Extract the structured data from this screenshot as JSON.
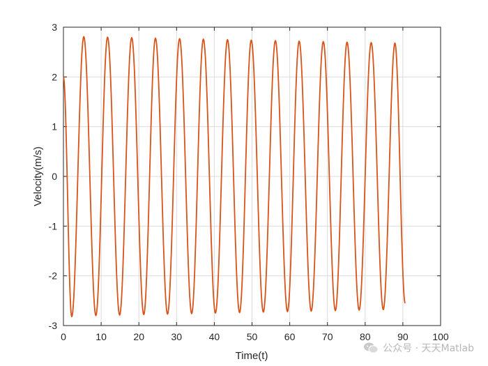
{
  "chart_data": {
    "type": "line",
    "title": "",
    "xlabel": "Time(t)",
    "ylabel": "Velocity(m/s)",
    "xlim": [
      0,
      100
    ],
    "ylim": [
      -3,
      3
    ],
    "xticks": [
      "0",
      "10",
      "20",
      "30",
      "40",
      "50",
      "60",
      "70",
      "80",
      "90",
      "100"
    ],
    "yticks": [
      "3",
      "2",
      "1",
      "0",
      "-1",
      "-2",
      "-3"
    ],
    "grid": true,
    "series": [
      {
        "name": "",
        "color": "#D95319",
        "x": [
          0,
          2.2,
          5.4,
          8.6,
          11.7,
          14.9,
          18.1,
          21.3,
          24.4,
          27.6,
          30.8,
          34.0,
          37.1,
          40.3,
          43.5,
          46.7,
          49.8,
          53.0,
          56.2,
          59.4,
          62.5,
          65.7,
          68.9,
          72.1,
          75.2,
          78.4,
          81.6,
          84.8,
          87.9,
          90.6
        ],
        "y": [
          2.0,
          -2.82,
          2.81,
          -2.8,
          2.8,
          -2.79,
          2.79,
          -2.78,
          2.78,
          -2.77,
          2.77,
          -2.76,
          2.76,
          -2.75,
          2.75,
          -2.74,
          2.74,
          -2.73,
          2.73,
          -2.72,
          2.72,
          -2.71,
          2.71,
          -2.7,
          2.7,
          -2.69,
          2.69,
          -2.68,
          2.68,
          -2.55
        ]
      }
    ]
  },
  "watermark": {
    "icon": "wechat-icon",
    "text": "公众号 · 天天Matlab"
  }
}
